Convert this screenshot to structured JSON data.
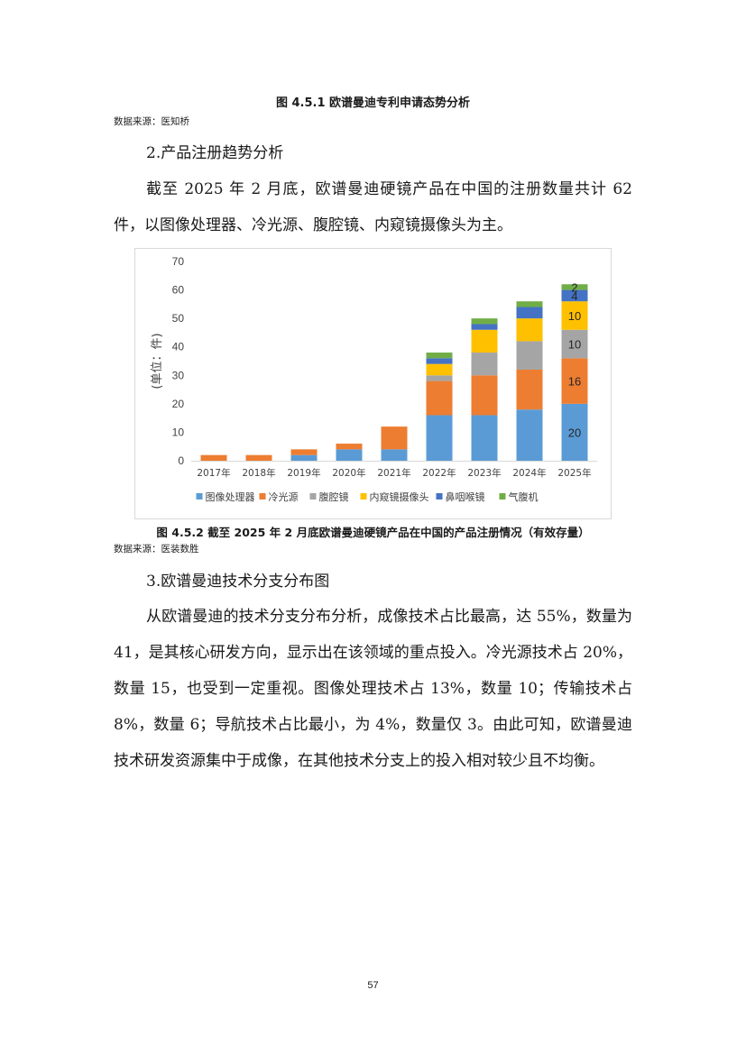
{
  "top_caption": "图 4.5.1 欧谱曼迪专利申请态势分析",
  "top_source": "数据来源：医知桥",
  "section2_title": "2.产品注册趋势分析",
  "section2_para": "截至 2025 年 2 月底，欧谱曼迪硬镜产品在中国的注册数量共计 62 件，以图像处理器、冷光源、腹腔镜、内窥镜摄像头为主。",
  "chart_caption": "图 4.5.2 截至 2025 年 2 月底欧谱曼迪硬镜产品在中国的产品注册情况（有效存量）",
  "chart_source": "数据来源：医装数胜",
  "section3_title": "3.欧谱曼迪技术分支分布图",
  "section3_para": "从欧谱曼迪的技术分支分布分析，成像技术占比最高，达 55%，数量为 41，是其核心研发方向，显示出在该领域的重点投入。冷光源技术占 20%，数量 15，也受到一定重视。图像处理技术占 13%，数量 10；传输技术占 8%，数量 6；导航技术占比最小，为 4%，数量仅 3。由此可知，欧谱曼迪技术研发资源集中于成像，在其他技术分支上的投入相对较少且不均衡。",
  "page_number": "57",
  "chart_data": {
    "type": "bar",
    "stacked": true,
    "categories": [
      "2017年",
      "2018年",
      "2019年",
      "2020年",
      "2021年",
      "2022年",
      "2023年",
      "2024年",
      "2025年"
    ],
    "ylabel": "(单位：件)",
    "ylim": [
      0,
      70
    ],
    "yticks": [
      0,
      10,
      20,
      30,
      40,
      50,
      60,
      70
    ],
    "legend_position": "bottom",
    "grid": false,
    "series": [
      {
        "name": "图像处理器",
        "color": "#5b9bd5",
        "values": [
          0,
          0,
          2,
          4,
          4,
          16,
          16,
          18,
          20
        ]
      },
      {
        "name": "冷光源",
        "color": "#ed7d31",
        "values": [
          2,
          2,
          2,
          2,
          8,
          12,
          14,
          14,
          16
        ]
      },
      {
        "name": "腹腔镜",
        "color": "#a5a5a5",
        "values": [
          0,
          0,
          0,
          0,
          0,
          2,
          8,
          10,
          10
        ]
      },
      {
        "name": "内窥镜摄像头",
        "color": "#ffc000",
        "values": [
          0,
          0,
          0,
          0,
          0,
          4,
          8,
          8,
          10
        ]
      },
      {
        "name": "鼻咽喉镜",
        "color": "#4472c4",
        "values": [
          0,
          0,
          0,
          0,
          0,
          2,
          2,
          4,
          4
        ]
      },
      {
        "name": "气腹机",
        "color": "#70ad47",
        "values": [
          0,
          0,
          0,
          0,
          0,
          2,
          2,
          2,
          2
        ]
      }
    ],
    "data_labels": [
      {
        "category": "2025年",
        "series": "图像处理器",
        "text": "20"
      },
      {
        "category": "2025年",
        "series": "冷光源",
        "text": "16"
      },
      {
        "category": "2025年",
        "series": "腹腔镜",
        "text": "10"
      },
      {
        "category": "2025年",
        "series": "内窥镜摄像头",
        "text": "10"
      },
      {
        "category": "2025年",
        "series": "鼻咽喉镜",
        "text": "4"
      },
      {
        "category": "2025年",
        "series": "气腹机",
        "text": "2"
      }
    ]
  }
}
